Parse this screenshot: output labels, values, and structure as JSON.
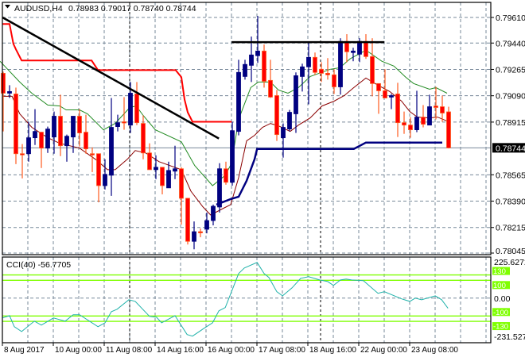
{
  "header": {
    "menu_icon": "triangle-down-icon",
    "symbol": "AUDUSD,H4",
    "ohlc": "0.78983 0.79017 0.78740 0.78744"
  },
  "colors": {
    "bull": "#000080",
    "bear": "#ff0000",
    "bear_wick": "#ff5a1e",
    "ma_fast": "#8b0000",
    "ma_slow": "#228b22",
    "trail_stop": "#ff0000",
    "support_step": "#000080",
    "trendline": "#000000",
    "cci": "#20b2aa",
    "cci_levels": "#7fff00",
    "grid": "#778899"
  },
  "chart_data": [
    {
      "type": "candlestick",
      "title": "AUDUSD,H4",
      "ylim": [
        0.78045,
        0.7961
      ],
      "y_ticks": [
        "0.79610",
        "0.79440",
        "0.79265",
        "0.79090",
        "0.78915",
        "0.78565",
        "0.78390",
        "0.78215",
        "0.78045"
      ],
      "current_price": "0.78744",
      "x_labels": [
        {
          "bar": 0,
          "label": "8 Aug 2017"
        },
        {
          "bar": 8,
          "label": "10 Aug 00:00"
        },
        {
          "bar": 16,
          "label": "11 Aug 08:00"
        },
        {
          "bar": 24,
          "label": "14 Aug 16:00"
        },
        {
          "bar": 32,
          "label": "16 Aug 00:00"
        },
        {
          "bar": 40,
          "label": "17 Aug 08:00"
        },
        {
          "bar": 48,
          "label": "18 Aug 16:00"
        },
        {
          "bar": 56,
          "label": "22 Aug 00:00"
        },
        {
          "bar": 64,
          "label": "23 Aug 08:00"
        }
      ],
      "separators": [
        20,
        50
      ],
      "candles_ohlc": [
        [
          0.79239,
          0.7925,
          0.78853,
          0.79107
        ],
        [
          0.79107,
          0.7916,
          0.79075,
          0.79118
        ],
        [
          0.79102,
          0.79144,
          0.78636,
          0.78705
        ],
        [
          0.78705,
          0.78769,
          0.78541,
          0.787
        ],
        [
          0.78705,
          0.78917,
          0.78652,
          0.78811
        ],
        [
          0.78811,
          0.79001,
          0.78763,
          0.78853
        ],
        [
          0.78848,
          0.7885,
          0.7861,
          0.78742
        ],
        [
          0.78742,
          0.78885,
          0.7871,
          0.78869
        ],
        [
          0.78816,
          0.78985,
          0.78705,
          0.78954
        ],
        [
          0.78954,
          0.79097,
          0.78689,
          0.78758
        ],
        [
          0.78758,
          0.78832,
          0.78652,
          0.78821
        ],
        [
          0.78816,
          0.78954,
          0.7871,
          0.78954
        ],
        [
          0.78954,
          0.79001,
          0.78753,
          0.78843
        ],
        [
          0.78848,
          0.78964,
          0.78705,
          0.78737
        ],
        [
          0.78705,
          0.78747,
          0.78583,
          0.787
        ],
        [
          0.78705,
          0.78705,
          0.78382,
          0.78493
        ],
        [
          0.78493,
          0.78668,
          0.78467,
          0.78568
        ],
        [
          0.78562,
          0.79075,
          0.78425,
          0.7888
        ],
        [
          0.78885,
          0.78964,
          0.78853,
          0.78911
        ],
        [
          0.78917,
          0.79081,
          0.78864,
          0.78911
        ],
        [
          0.78895,
          0.79181,
          0.78843,
          0.79107
        ],
        [
          0.79102,
          0.79181,
          0.78895,
          0.78911
        ],
        [
          0.78906,
          0.78959,
          0.78668,
          0.7871
        ],
        [
          0.7871,
          0.78774,
          0.78599,
          0.78599
        ],
        [
          0.78599,
          0.78694,
          0.78536,
          0.78615
        ],
        [
          0.78615,
          0.78615,
          0.78435,
          0.78493
        ],
        [
          0.78478,
          0.78652,
          0.78478,
          0.78594
        ],
        [
          0.78589,
          0.78758,
          0.78536,
          0.78605
        ],
        [
          0.78605,
          0.78615,
          0.78234,
          0.78409
        ],
        [
          0.78409,
          0.78409,
          0.78102,
          0.78123
        ],
        [
          0.78123,
          0.78255,
          0.7807,
          0.78187
        ],
        [
          0.78187,
          0.78208,
          0.7815,
          0.78182
        ],
        [
          0.78203,
          0.78314,
          0.78176,
          0.78261
        ],
        [
          0.78261,
          0.78367,
          0.78229,
          0.78356
        ],
        [
          0.78351,
          0.78642,
          0.78314,
          0.78605
        ],
        [
          0.78605,
          0.78652,
          0.78499,
          0.78515
        ],
        [
          0.78515,
          0.78917,
          0.78493,
          0.78858
        ],
        [
          0.78853,
          0.79329,
          0.78827,
          0.79245
        ],
        [
          0.79218,
          0.79329,
          0.79197,
          0.79298
        ],
        [
          0.79292,
          0.79483,
          0.79181,
          0.79361
        ],
        [
          0.79356,
          0.7962,
          0.79308,
          0.79387
        ],
        [
          0.79387,
          0.7943,
          0.79144,
          0.79186
        ],
        [
          0.79192,
          0.79329,
          0.79075,
          0.79081
        ],
        [
          0.79091,
          0.79128,
          0.7879,
          0.78832
        ],
        [
          0.78811,
          0.78906,
          0.78679,
          0.7888
        ],
        [
          0.78869,
          0.78996,
          0.78853,
          0.7898
        ],
        [
          0.7897,
          0.79245,
          0.78843,
          0.79223
        ],
        [
          0.79218,
          0.79303,
          0.79118,
          0.79282
        ],
        [
          0.79282,
          0.79446,
          0.79033,
          0.79345
        ],
        [
          0.79345,
          0.79377,
          0.79229,
          0.79245
        ],
        [
          0.79266,
          0.79313,
          0.79181,
          0.79239
        ],
        [
          0.79239,
          0.7934,
          0.79197,
          0.79229
        ],
        [
          0.79229,
          0.79266,
          0.79102,
          0.79149
        ],
        [
          0.79149,
          0.79472,
          0.79097,
          0.79451
        ],
        [
          0.79451,
          0.79499,
          0.79313,
          0.79382
        ],
        [
          0.79377,
          0.79409,
          0.79319,
          0.79387
        ],
        [
          0.79366,
          0.79472,
          0.79313,
          0.79451
        ],
        [
          0.79451,
          0.79499,
          0.79335,
          0.7935
        ],
        [
          0.7935,
          0.79472,
          0.79086,
          0.79171
        ],
        [
          0.79171,
          0.79171,
          0.7897,
          0.79123
        ],
        [
          0.79123,
          0.79266,
          0.79075,
          0.79075
        ],
        [
          0.79081,
          0.79102,
          0.79001,
          0.79091
        ],
        [
          0.79102,
          0.79176,
          0.78816,
          0.78911
        ],
        [
          0.78911,
          0.78985,
          0.78837,
          0.78895
        ],
        [
          0.78895,
          0.78948,
          0.78811,
          0.78864
        ],
        [
          0.78864,
          0.79123,
          0.78848,
          0.78948
        ],
        [
          0.78948,
          0.79028,
          0.7888,
          0.78901
        ],
        [
          0.78895,
          0.79097,
          0.78895,
          0.79017
        ],
        [
          0.79022,
          0.79149,
          0.78933,
          0.79012
        ],
        [
          0.79017,
          0.79091,
          0.78917,
          0.78975
        ],
        [
          0.78983,
          0.79017,
          0.7874,
          0.78744
        ]
      ],
      "lines": [
        {
          "name": "ma-slow",
          "color_key": "ma_slow",
          "points": [
            [
              -0.5,
              0.79319
            ],
            [
              2.6,
              0.79181
            ],
            [
              4.5,
              0.79107
            ],
            [
              7,
              0.79028
            ],
            [
              8.9,
              0.79022
            ],
            [
              9.9,
              0.78996
            ],
            [
              12,
              0.78996
            ],
            [
              13.25,
              0.7897
            ],
            [
              15.75,
              0.78864
            ],
            [
              17.6,
              0.78906
            ],
            [
              19.9,
              0.79012
            ],
            [
              20.9,
              0.79022
            ],
            [
              22,
              0.78959
            ],
            [
              23.9,
              0.78864
            ],
            [
              28,
              0.78784
            ],
            [
              30.1,
              0.78626
            ],
            [
              32.9,
              0.78493
            ],
            [
              34.9,
              0.78562
            ],
            [
              35.9,
              0.78642
            ],
            [
              37,
              0.78933
            ],
            [
              38.9,
              0.79144
            ],
            [
              40.1,
              0.79181
            ],
            [
              42,
              0.79181
            ],
            [
              43.25,
              0.79128
            ],
            [
              44.75,
              0.79107
            ],
            [
              46.4,
              0.79144
            ],
            [
              48.25,
              0.79218
            ],
            [
              51.4,
              0.79266
            ],
            [
              52.9,
              0.79276
            ],
            [
              54.5,
              0.79335
            ],
            [
              57,
              0.79393
            ],
            [
              59.5,
              0.79319
            ],
            [
              61.4,
              0.79287
            ],
            [
              63.25,
              0.79213
            ],
            [
              64.5,
              0.79171
            ],
            [
              67,
              0.79133
            ],
            [
              68,
              0.79144
            ],
            [
              69.75,
              0.79107
            ]
          ]
        },
        {
          "name": "ma-fast",
          "color_key": "ma_fast",
          "points": [
            [
              -0.1,
              0.79086
            ],
            [
              1.4,
              0.79086
            ],
            [
              2.6,
              0.7897
            ],
            [
              4.5,
              0.7888
            ],
            [
              7,
              0.78811
            ],
            [
              8.9,
              0.78774
            ],
            [
              12,
              0.78742
            ],
            [
              14.5,
              0.78668
            ],
            [
              16.4,
              0.78599
            ],
            [
              17.6,
              0.78599
            ],
            [
              19.5,
              0.78668
            ],
            [
              20.75,
              0.78726
            ],
            [
              22.4,
              0.7871
            ],
            [
              24.5,
              0.78652
            ],
            [
              28,
              0.78599
            ],
            [
              29.5,
              0.78456
            ],
            [
              31.4,
              0.78351
            ],
            [
              32.6,
              0.78298
            ],
            [
              34.5,
              0.7834
            ],
            [
              35.75,
              0.78367
            ],
            [
              37,
              0.78546
            ],
            [
              38.25,
              0.7879
            ],
            [
              39.5,
              0.78827
            ],
            [
              40.75,
              0.7888
            ],
            [
              42,
              0.78906
            ],
            [
              43.25,
              0.7889
            ],
            [
              45.1,
              0.78853
            ],
            [
              46.4,
              0.78895
            ],
            [
              48.25,
              0.78943
            ],
            [
              50.1,
              0.79022
            ],
            [
              52,
              0.79054
            ],
            [
              53.6,
              0.79091
            ],
            [
              55.1,
              0.79144
            ],
            [
              57,
              0.79208
            ],
            [
              58.9,
              0.7916
            ],
            [
              60.75,
              0.79118
            ],
            [
              62.6,
              0.79054
            ],
            [
              63.9,
              0.78985
            ],
            [
              65.1,
              0.78948
            ],
            [
              67,
              0.78943
            ],
            [
              68.25,
              0.78948
            ],
            [
              69.75,
              0.78922
            ]
          ]
        },
        {
          "name": "trailing-stop",
          "color_key": "trail_stop",
          "width": 2,
          "points": [
            [
              -0.1,
              0.79567
            ],
            [
              1,
              0.79567
            ],
            [
              1.6,
              0.79435
            ],
            [
              2,
              0.79398
            ],
            [
              2.9,
              0.79324
            ],
            [
              13.9,
              0.79324
            ],
            [
              14.9,
              0.7926
            ],
            [
              27.1,
              0.7926
            ],
            [
              28,
              0.79213
            ],
            [
              28.5,
              0.79065
            ],
            [
              29,
              0.7898
            ],
            [
              29.75,
              0.78917
            ],
            [
              35.9,
              0.78917
            ]
          ]
        },
        {
          "name": "support-step",
          "color_key": "support_step",
          "width": 2.5,
          "points": [
            [
              33.5,
              0.78367
            ],
            [
              35.75,
              0.78404
            ],
            [
              37,
              0.78419
            ],
            [
              38.25,
              0.78525
            ],
            [
              39.5,
              0.78668
            ],
            [
              39.9,
              0.78737
            ],
            [
              55.1,
              0.78737
            ],
            [
              57,
              0.78779
            ],
            [
              69,
              0.78779
            ]
          ]
        },
        {
          "name": "trendline",
          "color_key": "trendline",
          "width": 2.5,
          "points": [
            [
              -0.1,
              0.7961
            ],
            [
              33.9,
              0.78806
            ]
          ]
        },
        {
          "name": "resistance-line",
          "color_key": "trendline",
          "width": 2.5,
          "points": [
            [
              35.9,
              0.79446
            ],
            [
              59.9,
              0.79446
            ]
          ]
        }
      ]
    },
    {
      "type": "line",
      "title": "CCI(40) -56.7705",
      "ylim": [
        -231.5279,
        225.6272
      ],
      "y_labels": [
        "225.6272",
        "0.00",
        "-231.5279"
      ],
      "levels": [
        {
          "value": 130,
          "label": "130"
        },
        {
          "value": 100,
          "label": "100"
        },
        {
          "value": -100,
          "label": "-100"
        },
        {
          "value": -130,
          "label": "-130"
        }
      ],
      "points": [
        [
          -0.1,
          -111
        ],
        [
          1,
          -98
        ],
        [
          1.75,
          -160
        ],
        [
          2.9,
          -187
        ],
        [
          4.9,
          -129
        ],
        [
          6,
          -151
        ],
        [
          7.9,
          -111
        ],
        [
          9.75,
          -129
        ],
        [
          11,
          -93
        ],
        [
          12,
          -93
        ],
        [
          14.9,
          -160
        ],
        [
          16,
          -138
        ],
        [
          17,
          -76
        ],
        [
          17.9,
          -62
        ],
        [
          19.75,
          -9
        ],
        [
          20.75,
          -18
        ],
        [
          23,
          -102
        ],
        [
          24.1,
          -107
        ],
        [
          24.9,
          -138
        ],
        [
          27,
          -98
        ],
        [
          28.9,
          -204
        ],
        [
          29.75,
          -213
        ],
        [
          31.4,
          -173
        ],
        [
          32.9,
          -138
        ],
        [
          33.9,
          -71
        ],
        [
          34.9,
          -53
        ],
        [
          37,
          138
        ],
        [
          37.9,
          169
        ],
        [
          39.9,
          200
        ],
        [
          41,
          138
        ],
        [
          41.75,
          116
        ],
        [
          43,
          36
        ],
        [
          43.9,
          13
        ],
        [
          45.4,
          58
        ],
        [
          46.75,
          111
        ],
        [
          48,
          120
        ],
        [
          49.75,
          102
        ],
        [
          51,
          93
        ],
        [
          51.9,
          71
        ],
        [
          53,
          102
        ],
        [
          53.9,
          107
        ],
        [
          54.75,
          102
        ],
        [
          56.6,
          98
        ],
        [
          58.9,
          27
        ],
        [
          59.9,
          36
        ],
        [
          62.6,
          -4
        ],
        [
          63.9,
          -18
        ],
        [
          64.75,
          0
        ],
        [
          65.75,
          -9
        ],
        [
          67.9,
          13
        ],
        [
          68.9,
          -9
        ],
        [
          69.9,
          -56.77
        ]
      ]
    }
  ]
}
